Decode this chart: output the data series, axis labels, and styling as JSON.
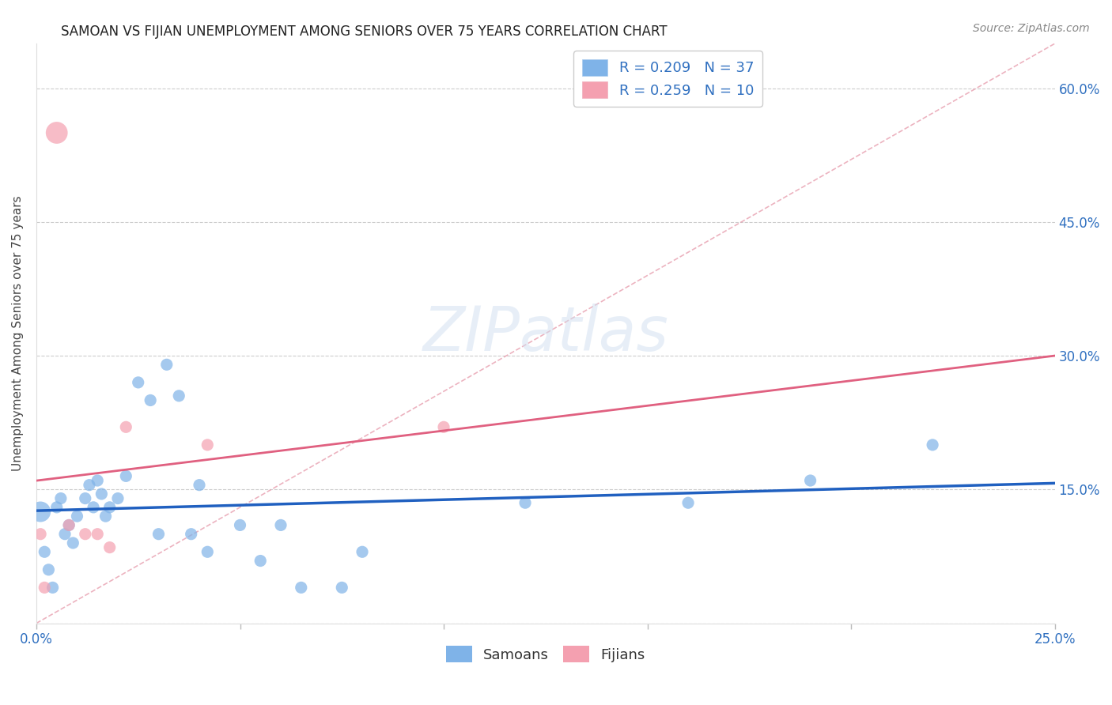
{
  "title": "SAMOAN VS FIJIAN UNEMPLOYMENT AMONG SENIORS OVER 75 YEARS CORRELATION CHART",
  "source": "Source: ZipAtlas.com",
  "ylabel": "Unemployment Among Seniors over 75 years",
  "xlim": [
    0.0,
    0.25
  ],
  "ylim": [
    0.0,
    0.65
  ],
  "x_ticks": [
    0.0,
    0.05,
    0.1,
    0.15,
    0.2,
    0.25
  ],
  "y_ticks": [
    0.0,
    0.15,
    0.3,
    0.45,
    0.6
  ],
  "y_tick_labels": [
    "",
    "15.0%",
    "30.0%",
    "45.0%",
    "60.0%"
  ],
  "background_color": "#ffffff",
  "grid_color": "#cccccc",
  "samoan_color": "#7fb3e8",
  "fijian_color": "#f4a0b0",
  "samoan_line_color": "#2060c0",
  "fijian_line_color": "#e06080",
  "diag_line_color": "#e8a0b0",
  "tick_label_color": "#3070c0",
  "title_color": "#222222",
  "source_color": "#888888",
  "ylabel_color": "#444444",
  "samoan_x": [
    0.001,
    0.002,
    0.003,
    0.004,
    0.005,
    0.006,
    0.007,
    0.008,
    0.009,
    0.01,
    0.012,
    0.013,
    0.014,
    0.015,
    0.016,
    0.017,
    0.018,
    0.02,
    0.022,
    0.025,
    0.028,
    0.03,
    0.032,
    0.035,
    0.038,
    0.04,
    0.042,
    0.05,
    0.055,
    0.06,
    0.065,
    0.075,
    0.08,
    0.12,
    0.16,
    0.19,
    0.22
  ],
  "samoan_y": [
    0.125,
    0.08,
    0.06,
    0.04,
    0.13,
    0.14,
    0.1,
    0.11,
    0.09,
    0.12,
    0.14,
    0.155,
    0.13,
    0.16,
    0.145,
    0.12,
    0.13,
    0.14,
    0.165,
    0.27,
    0.25,
    0.1,
    0.29,
    0.255,
    0.1,
    0.155,
    0.08,
    0.11,
    0.07,
    0.11,
    0.04,
    0.04,
    0.08,
    0.135,
    0.135,
    0.16,
    0.2
  ],
  "fijian_x": [
    0.001,
    0.002,
    0.005,
    0.008,
    0.012,
    0.015,
    0.018,
    0.022,
    0.042,
    0.1
  ],
  "fijian_y": [
    0.1,
    0.04,
    0.55,
    0.11,
    0.1,
    0.1,
    0.085,
    0.22,
    0.2,
    0.22
  ],
  "samoan_marker_size": 120,
  "fijian_marker_size": 120,
  "large_samoan_indices": [
    0
  ],
  "large_fijian_indices": [
    2
  ],
  "R_samoan": "0.209",
  "N_samoan": "37",
  "R_fijian": "0.259",
  "N_fijian": "10"
}
